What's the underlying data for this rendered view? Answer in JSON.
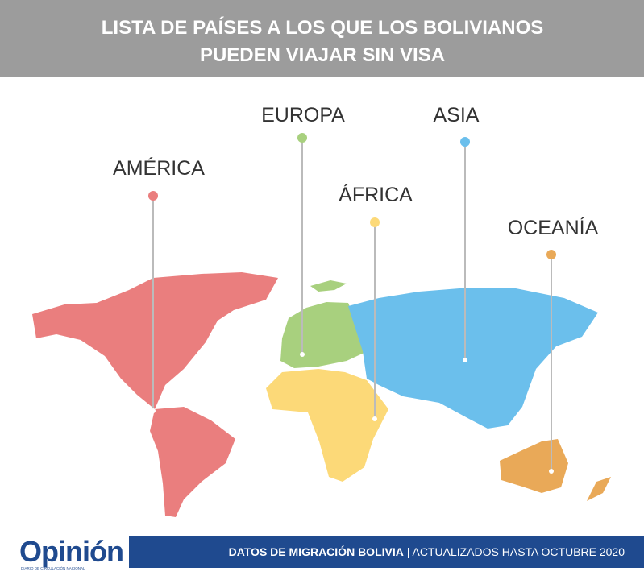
{
  "header": {
    "title_lines": [
      "LISTA DE PAÍSES A LOS QUE LOS BOLIVIANOS",
      "PUEDEN VIAJAR SIN VISA"
    ]
  },
  "regions": [
    {
      "label": "AMÉRICA",
      "color": "#ea7e7e"
    },
    {
      "label": "EUROPA",
      "color": "#a8d07e"
    },
    {
      "label": "ÁFRICA",
      "color": "#fcd978"
    },
    {
      "label": "ASIA",
      "color": "#6bbfec"
    },
    {
      "label": "OCEANÍA",
      "color": "#e9a958"
    }
  ],
  "footer": {
    "logo": "Opinión",
    "logo_tagline": "DIARIO DE CIRCULACIÓN NACIONAL",
    "source": "DATOS DE MIGRACIÓN BOLIVIA",
    "separator": "|",
    "updated": "ACTUALIZADOS HASTA OCTUBRE 2020"
  }
}
